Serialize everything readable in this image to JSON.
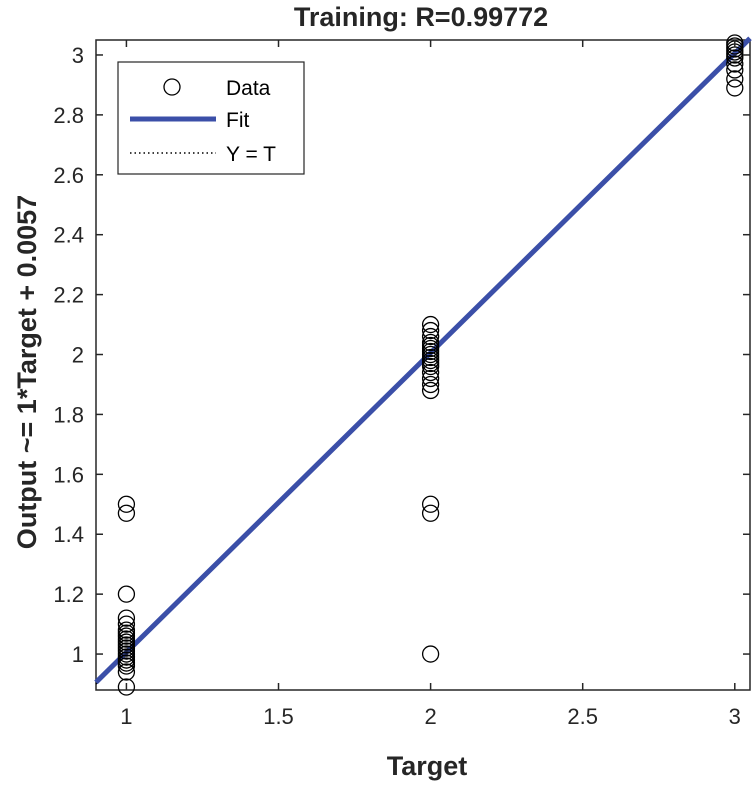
{
  "chart_data": {
    "type": "scatter",
    "title": "Training: R=0.99772",
    "xlabel": "Target",
    "ylabel": "Output ~= 1*Target + 0.0057",
    "xlim": [
      0.9,
      3.05
    ],
    "ylim": [
      0.88,
      3.05
    ],
    "xticks": [
      "1",
      "1.5",
      "2",
      "2.5",
      "3"
    ],
    "yticks": [
      "1",
      "1.2",
      "1.4",
      "1.6",
      "1.8",
      "2",
      "2.2",
      "2.4",
      "2.6",
      "2.8",
      "3"
    ],
    "grid": false,
    "legend_position": "top-left",
    "legend": [
      "Data",
      "Fit",
      "Y = T"
    ],
    "fit": {
      "slope": 1,
      "intercept": 0.0057,
      "color": "#3b4fa8"
    },
    "identity_line": {
      "style": "dotted",
      "color": "#000000"
    },
    "series": [
      {
        "name": "Data",
        "marker": "open-circle",
        "points": [
          [
            1,
            0.89
          ],
          [
            1,
            0.94
          ],
          [
            1,
            0.96
          ],
          [
            1,
            0.97
          ],
          [
            1,
            0.98
          ],
          [
            1,
            0.99
          ],
          [
            1,
            1.0
          ],
          [
            1,
            1.01
          ],
          [
            1,
            1.02
          ],
          [
            1,
            1.03
          ],
          [
            1,
            1.04
          ],
          [
            1,
            1.05
          ],
          [
            1,
            1.06
          ],
          [
            1,
            1.07
          ],
          [
            1,
            1.08
          ],
          [
            1,
            1.1
          ],
          [
            1,
            1.12
          ],
          [
            1,
            1.2
          ],
          [
            1,
            1.47
          ],
          [
            1,
            1.5
          ],
          [
            2,
            1.0
          ],
          [
            2,
            1.47
          ],
          [
            2,
            1.5
          ],
          [
            2,
            1.88
          ],
          [
            2,
            1.9
          ],
          [
            2,
            1.92
          ],
          [
            2,
            1.94
          ],
          [
            2,
            1.96
          ],
          [
            2,
            1.97
          ],
          [
            2,
            1.98
          ],
          [
            2,
            1.99
          ],
          [
            2,
            2.0
          ],
          [
            2,
            2.01
          ],
          [
            2,
            2.02
          ],
          [
            2,
            2.03
          ],
          [
            2,
            2.04
          ],
          [
            2,
            2.06
          ],
          [
            2,
            2.08
          ],
          [
            2,
            2.1
          ],
          [
            3,
            2.89
          ],
          [
            3,
            2.92
          ],
          [
            3,
            2.95
          ],
          [
            3,
            2.97
          ],
          [
            3,
            2.99
          ],
          [
            3,
            3.0
          ],
          [
            3,
            3.01
          ],
          [
            3,
            3.02
          ],
          [
            3,
            3.03
          ],
          [
            3,
            3.04
          ]
        ]
      }
    ],
    "colors": {
      "axis": "#262626",
      "fit": "#3b4fa8",
      "marker": "#000000"
    }
  }
}
